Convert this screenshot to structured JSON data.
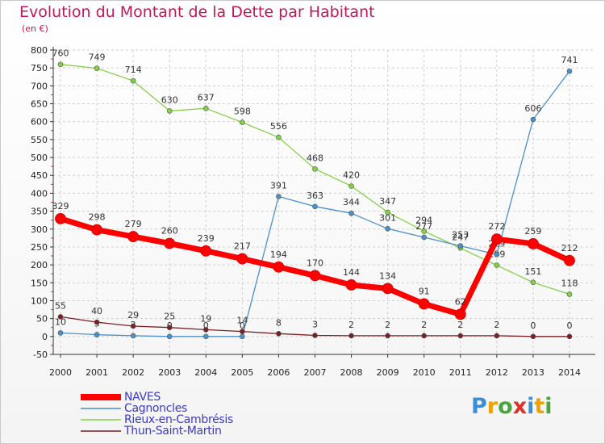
{
  "title": "Evolution du Montant de la Dette par Habitant",
  "subtitle": "(en €)",
  "logo": {
    "p": "P",
    "r": "r",
    "o": "o",
    "x": "x",
    "i1": "i",
    "t": "t",
    "i2": "i"
  },
  "colors": {
    "title": "#c2185b",
    "NAVES": "#ff0000",
    "Cagnoncles": "#4d90c8",
    "Rieux": "#86d048",
    "Thun": "#7a1f24"
  },
  "chart_data": {
    "type": "line",
    "title": "Evolution du Montant de la Dette par Habitant",
    "ylabel": "(en €)",
    "x": [
      2000,
      2001,
      2002,
      2003,
      2004,
      2005,
      2006,
      2007,
      2008,
      2009,
      2010,
      2011,
      2012,
      2013,
      2014
    ],
    "ylim": [
      -50,
      800
    ],
    "yticks": [
      -50,
      0,
      50,
      100,
      150,
      200,
      250,
      300,
      350,
      400,
      450,
      500,
      550,
      600,
      650,
      700,
      750,
      800
    ],
    "grid": true,
    "legend": "bottom-left",
    "series": [
      {
        "name": "NAVES",
        "color": "#ff0000",
        "values": [
          329,
          298,
          279,
          260,
          239,
          217,
          194,
          170,
          144,
          134,
          91,
          62,
          272,
          259,
          212
        ]
      },
      {
        "name": "Cagnoncles",
        "color": "#4d90c8",
        "values": [
          10,
          5,
          2,
          0,
          0,
          0,
          391,
          363,
          344,
          301,
          277,
          253,
          229,
          606,
          741
        ]
      },
      {
        "name": "Rieux-en-Cambrésis",
        "color": "#86d048",
        "values": [
          760,
          749,
          714,
          630,
          637,
          598,
          556,
          468,
          420,
          347,
          294,
          247,
          199,
          151,
          118
        ]
      },
      {
        "name": "Thun-Saint-Martin",
        "color": "#7a1f24",
        "values": [
          55,
          40,
          29,
          25,
          19,
          14,
          8,
          3,
          2,
          2,
          2,
          2,
          2,
          0,
          0
        ]
      }
    ]
  }
}
